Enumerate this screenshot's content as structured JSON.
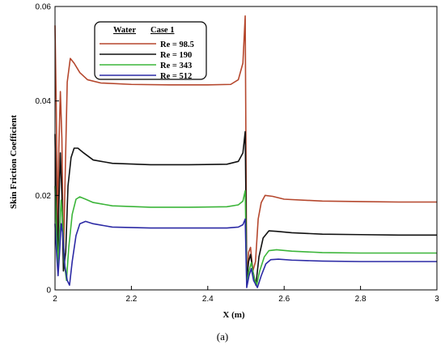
{
  "chart_data": {
    "type": "line",
    "xlabel": "X (m)",
    "ylabel": "Skin Friction Coefficient",
    "xlim": [
      2,
      3
    ],
    "ylim": [
      0,
      0.06
    ],
    "xticks": [
      "2",
      "2.2",
      "2.4",
      "2.6",
      "2.8",
      "3"
    ],
    "yticks": [
      "0",
      "0.02",
      "0.04",
      "0.06"
    ],
    "legend_header": [
      "Water",
      "Case 1"
    ],
    "legend_position": "top-left",
    "caption": "(a)",
    "grid": false,
    "series": [
      {
        "name": "Re = 98.5",
        "color": "#b5472d",
        "points": [
          [
            2.0,
            0.056
          ],
          [
            2.003,
            0.04
          ],
          [
            2.007,
            0.012
          ],
          [
            2.01,
            0.03
          ],
          [
            2.014,
            0.042
          ],
          [
            2.018,
            0.032
          ],
          [
            2.022,
            0.006
          ],
          [
            2.026,
            0.022
          ],
          [
            2.032,
            0.044
          ],
          [
            2.04,
            0.049
          ],
          [
            2.05,
            0.048
          ],
          [
            2.065,
            0.046
          ],
          [
            2.085,
            0.0445
          ],
          [
            2.12,
            0.0438
          ],
          [
            2.2,
            0.0435
          ],
          [
            2.3,
            0.0434
          ],
          [
            2.4,
            0.0434
          ],
          [
            2.46,
            0.0435
          ],
          [
            2.48,
            0.0445
          ],
          [
            2.492,
            0.048
          ],
          [
            2.498,
            0.058
          ],
          [
            2.502,
            0.002
          ],
          [
            2.507,
            0.008
          ],
          [
            2.512,
            0.009
          ],
          [
            2.518,
            0.004
          ],
          [
            2.525,
            0.006
          ],
          [
            2.532,
            0.015
          ],
          [
            2.54,
            0.0185
          ],
          [
            2.55,
            0.02
          ],
          [
            2.57,
            0.0198
          ],
          [
            2.6,
            0.0192
          ],
          [
            2.7,
            0.0188
          ],
          [
            2.8,
            0.0187
          ],
          [
            2.9,
            0.0186
          ],
          [
            3.0,
            0.0186
          ]
        ]
      },
      {
        "name": "Re = 190",
        "color": "#111111",
        "points": [
          [
            2.0,
            0.033
          ],
          [
            2.003,
            0.018
          ],
          [
            2.007,
            0.006
          ],
          [
            2.01,
            0.018
          ],
          [
            2.014,
            0.029
          ],
          [
            2.018,
            0.02
          ],
          [
            2.022,
            0.004
          ],
          [
            2.028,
            0.008
          ],
          [
            2.034,
            0.022
          ],
          [
            2.042,
            0.028
          ],
          [
            2.05,
            0.03
          ],
          [
            2.06,
            0.03
          ],
          [
            2.075,
            0.029
          ],
          [
            2.1,
            0.0275
          ],
          [
            2.15,
            0.0268
          ],
          [
            2.25,
            0.0265
          ],
          [
            2.35,
            0.0265
          ],
          [
            2.45,
            0.0266
          ],
          [
            2.48,
            0.0272
          ],
          [
            2.492,
            0.029
          ],
          [
            2.498,
            0.0335
          ],
          [
            2.502,
            0.002
          ],
          [
            2.507,
            0.006
          ],
          [
            2.512,
            0.0075
          ],
          [
            2.518,
            0.004
          ],
          [
            2.526,
            0.001
          ],
          [
            2.534,
            0.007
          ],
          [
            2.545,
            0.011
          ],
          [
            2.56,
            0.0125
          ],
          [
            2.58,
            0.0124
          ],
          [
            2.62,
            0.0121
          ],
          [
            2.7,
            0.0118
          ],
          [
            2.8,
            0.0117
          ],
          [
            2.9,
            0.0116
          ],
          [
            3.0,
            0.0116
          ]
        ]
      },
      {
        "name": "Re = 343",
        "color": "#3cb53a",
        "points": [
          [
            2.0,
            0.022
          ],
          [
            2.004,
            0.012
          ],
          [
            2.008,
            0.005
          ],
          [
            2.012,
            0.012
          ],
          [
            2.016,
            0.019
          ],
          [
            2.02,
            0.015
          ],
          [
            2.024,
            0.006
          ],
          [
            2.03,
            0.002
          ],
          [
            2.036,
            0.009
          ],
          [
            2.045,
            0.016
          ],
          [
            2.055,
            0.0192
          ],
          [
            2.065,
            0.0197
          ],
          [
            2.08,
            0.0192
          ],
          [
            2.1,
            0.0185
          ],
          [
            2.15,
            0.0178
          ],
          [
            2.25,
            0.0175
          ],
          [
            2.35,
            0.0175
          ],
          [
            2.45,
            0.0176
          ],
          [
            2.48,
            0.018
          ],
          [
            2.492,
            0.0188
          ],
          [
            2.498,
            0.021
          ],
          [
            2.502,
            0.001
          ],
          [
            2.508,
            0.004
          ],
          [
            2.514,
            0.0058
          ],
          [
            2.52,
            0.003
          ],
          [
            2.528,
            0.001
          ],
          [
            2.536,
            0.004
          ],
          [
            2.548,
            0.007
          ],
          [
            2.56,
            0.0083
          ],
          [
            2.58,
            0.0085
          ],
          [
            2.62,
            0.0082
          ],
          [
            2.7,
            0.0079
          ],
          [
            2.8,
            0.0078
          ],
          [
            2.9,
            0.0078
          ],
          [
            3.0,
            0.0078
          ]
        ]
      },
      {
        "name": "Re = 512",
        "color": "#2c2aa5",
        "points": [
          [
            2.0,
            0.014
          ],
          [
            2.004,
            0.008
          ],
          [
            2.008,
            0.003
          ],
          [
            2.012,
            0.008
          ],
          [
            2.016,
            0.014
          ],
          [
            2.02,
            0.012
          ],
          [
            2.026,
            0.005
          ],
          [
            2.032,
            0.002
          ],
          [
            2.038,
            0.001
          ],
          [
            2.045,
            0.006
          ],
          [
            2.055,
            0.0115
          ],
          [
            2.065,
            0.014
          ],
          [
            2.08,
            0.0145
          ],
          [
            2.1,
            0.014
          ],
          [
            2.15,
            0.0133
          ],
          [
            2.25,
            0.0131
          ],
          [
            2.35,
            0.0131
          ],
          [
            2.45,
            0.0131
          ],
          [
            2.48,
            0.0133
          ],
          [
            2.492,
            0.0138
          ],
          [
            2.498,
            0.015
          ],
          [
            2.502,
            0.0005
          ],
          [
            2.508,
            0.003
          ],
          [
            2.514,
            0.0045
          ],
          [
            2.52,
            0.002
          ],
          [
            2.53,
            0.0005
          ],
          [
            2.54,
            0.003
          ],
          [
            2.552,
            0.0055
          ],
          [
            2.565,
            0.0064
          ],
          [
            2.585,
            0.0065
          ],
          [
            2.62,
            0.0063
          ],
          [
            2.7,
            0.0061
          ],
          [
            2.8,
            0.006
          ],
          [
            2.9,
            0.006
          ],
          [
            3.0,
            0.006
          ]
        ]
      }
    ]
  }
}
